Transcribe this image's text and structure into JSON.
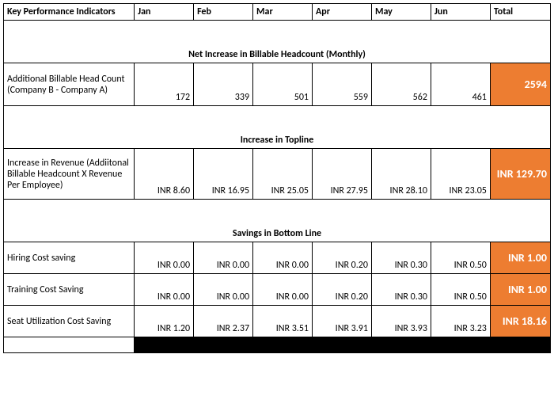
{
  "colors": {
    "accent": "#ed7d31",
    "text_on_accent": "#ffffff",
    "black": "#000000"
  },
  "header": {
    "label": "Key Performance Indicators",
    "months": [
      "Jan",
      "Feb",
      "Mar",
      "Apr",
      "May",
      "Jun"
    ],
    "total": "Total"
  },
  "sections": {
    "headcount": {
      "title": "Net Increase in Billable Headcount (Monthly)",
      "row_label": "Additional Billable Head Count (Company B - Company A)",
      "values": [
        "172",
        "339",
        "501",
        "559",
        "562",
        "461"
      ],
      "total": "2594"
    },
    "topline": {
      "title": "Increase in Topline",
      "row_label": "Increase in Revenue (Addiitonal Billable Headcount X Revenue Per Employee)",
      "values": [
        "INR 8.60",
        "INR 16.95",
        "INR 25.05",
        "INR 27.95",
        "INR 28.10",
        "INR 23.05"
      ],
      "total": "INR 129.70"
    },
    "bottomline": {
      "title": "Savings in Bottom Line",
      "rows": [
        {
          "label": "Hiring Cost saving",
          "values": [
            "INR 0.00",
            "INR 0.00",
            "INR 0.00",
            "INR 0.20",
            "INR 0.30",
            "INR 0.50"
          ],
          "total": "INR 1.00"
        },
        {
          "label": "Training Cost Saving",
          "values": [
            "INR 0.00",
            "INR 0.00",
            "INR 0.00",
            "INR 0.20",
            "INR 0.30",
            "INR 0.50"
          ],
          "total": "INR 1.00"
        },
        {
          "label": "Seat Utilization Cost Saving",
          "values": [
            "INR 1.20",
            "INR 2.37",
            "INR 3.51",
            "INR 3.91",
            "INR 3.93",
            "INR 3.23"
          ],
          "total": "INR 18.16"
        }
      ]
    }
  }
}
